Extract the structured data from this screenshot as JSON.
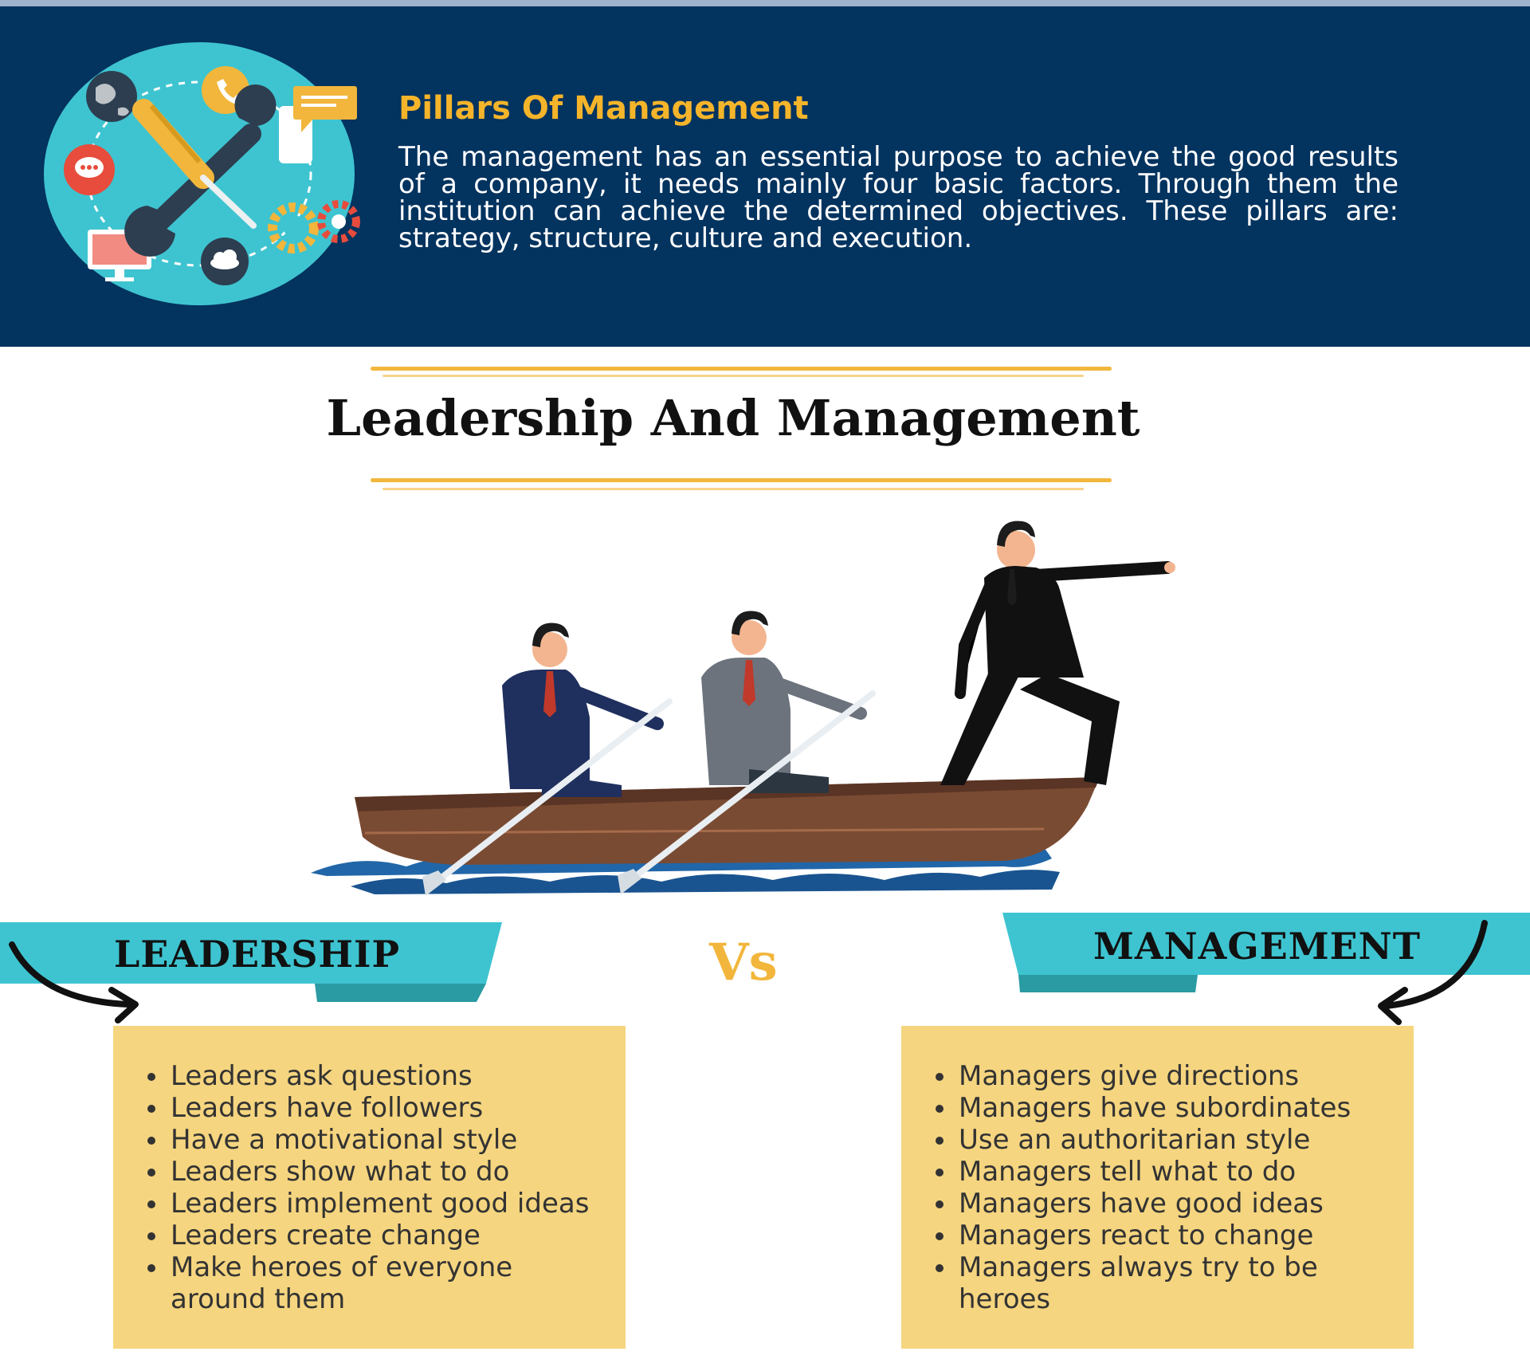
{
  "header": {
    "title": "Pillars Of Management",
    "body": "The management has an essential purpose to achieve the good results of a company, it needs mainly four basic factors. Through them the institution can achieve the determined objectives. These pillars are: strategy, structure, culture and execution."
  },
  "section": {
    "title": "Leadership And Management"
  },
  "comparison": {
    "left_label": "LEADERSHIP",
    "vs_label": "Vs",
    "right_label": "MANAGEMENT",
    "leadership_items": [
      "Leaders ask questions",
      "Leaders have followers",
      "Have a motivational style",
      "Leaders show what to do",
      "Leaders implement good ideas",
      "Leaders create change",
      "Make heroes of everyone around them"
    ],
    "management_items": [
      "Managers give directions",
      "Managers have subordinates",
      "Use an authoritarian style",
      "Managers tell what to do",
      "Managers have good ideas",
      "Managers react to change",
      "Managers always try to be heroes"
    ]
  },
  "colors": {
    "header_bg": "#03335f",
    "accent_gold": "#f5b42a",
    "ribbon_teal": "#3ec4d0",
    "card_bg": "#f5d57f"
  },
  "icons": [
    "globe-icon",
    "phone-icon",
    "chat-icon",
    "message-icon",
    "monitor-icon",
    "cloud-icon",
    "gear-icon",
    "wrench-icon",
    "screwdriver-icon"
  ]
}
